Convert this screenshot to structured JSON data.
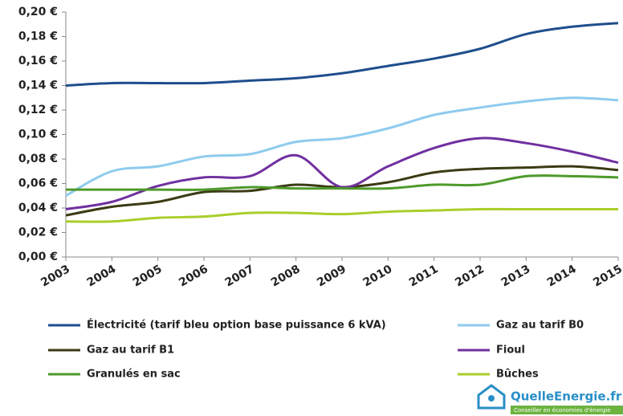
{
  "chart_data": {
    "type": "line",
    "categories": [
      "2003",
      "2004",
      "2005",
      "2006",
      "2007",
      "2008",
      "2009",
      "2010",
      "2011",
      "2012",
      "2013",
      "2014",
      "2015"
    ],
    "series": [
      {
        "name": "Électricité (tarif bleu option base puissance 6 kVA)",
        "color": "#1f4e8c",
        "values": [
          0.14,
          0.142,
          0.142,
          0.142,
          0.144,
          0.146,
          0.15,
          0.156,
          0.162,
          0.17,
          0.182,
          0.188,
          0.191
        ]
      },
      {
        "name": "Gaz au tarif B0",
        "color": "#8ecbee",
        "values": [
          0.05,
          0.07,
          0.074,
          0.082,
          0.084,
          0.094,
          0.097,
          0.105,
          0.116,
          0.122,
          0.127,
          0.13,
          0.128
        ]
      },
      {
        "name": "Gaz au tarif B1",
        "color": "#3b3b14",
        "values": [
          0.034,
          0.041,
          0.045,
          0.053,
          0.054,
          0.059,
          0.057,
          0.061,
          0.069,
          0.072,
          0.073,
          0.074,
          0.071
        ]
      },
      {
        "name": "Fioul",
        "color": "#7030a0",
        "values": [
          0.039,
          0.045,
          0.058,
          0.065,
          0.066,
          0.083,
          0.057,
          0.074,
          0.089,
          0.097,
          0.093,
          0.086,
          0.077
        ]
      },
      {
        "name": "Granulés en sac",
        "color": "#4e9a2a",
        "values": [
          0.055,
          0.055,
          0.055,
          0.055,
          0.057,
          0.056,
          0.056,
          0.056,
          0.059,
          0.059,
          0.066,
          0.066,
          0.065
        ]
      },
      {
        "name": "Bûches",
        "color": "#a8cf2b",
        "values": [
          0.029,
          0.029,
          0.032,
          0.033,
          0.036,
          0.036,
          0.035,
          0.037,
          0.038,
          0.039,
          0.039,
          0.039,
          0.039
        ]
      }
    ],
    "ylim": [
      0,
      0.2
    ],
    "yticks": [
      {
        "value": 0,
        "label": "0,00 €"
      },
      {
        "value": 0.02,
        "label": "0,02 €"
      },
      {
        "value": 0.04,
        "label": "0,04 €"
      },
      {
        "value": 0.06,
        "label": "0,06 €"
      },
      {
        "value": 0.08,
        "label": "0,08 €"
      },
      {
        "value": 0.1,
        "label": "0,10 €"
      },
      {
        "value": 0.12,
        "label": "0,12 €"
      },
      {
        "value": 0.14,
        "label": "0,14 €"
      },
      {
        "value": 0.16,
        "label": "0,16 €"
      },
      {
        "value": 0.18,
        "label": "0,18 €"
      },
      {
        "value": 0.2,
        "label": "0,20 €"
      }
    ],
    "grid": false,
    "legend": "bottom"
  },
  "logo": {
    "name": "QuelleEnergie.fr",
    "tagline": "Conseiller en économies d'énergie"
  }
}
